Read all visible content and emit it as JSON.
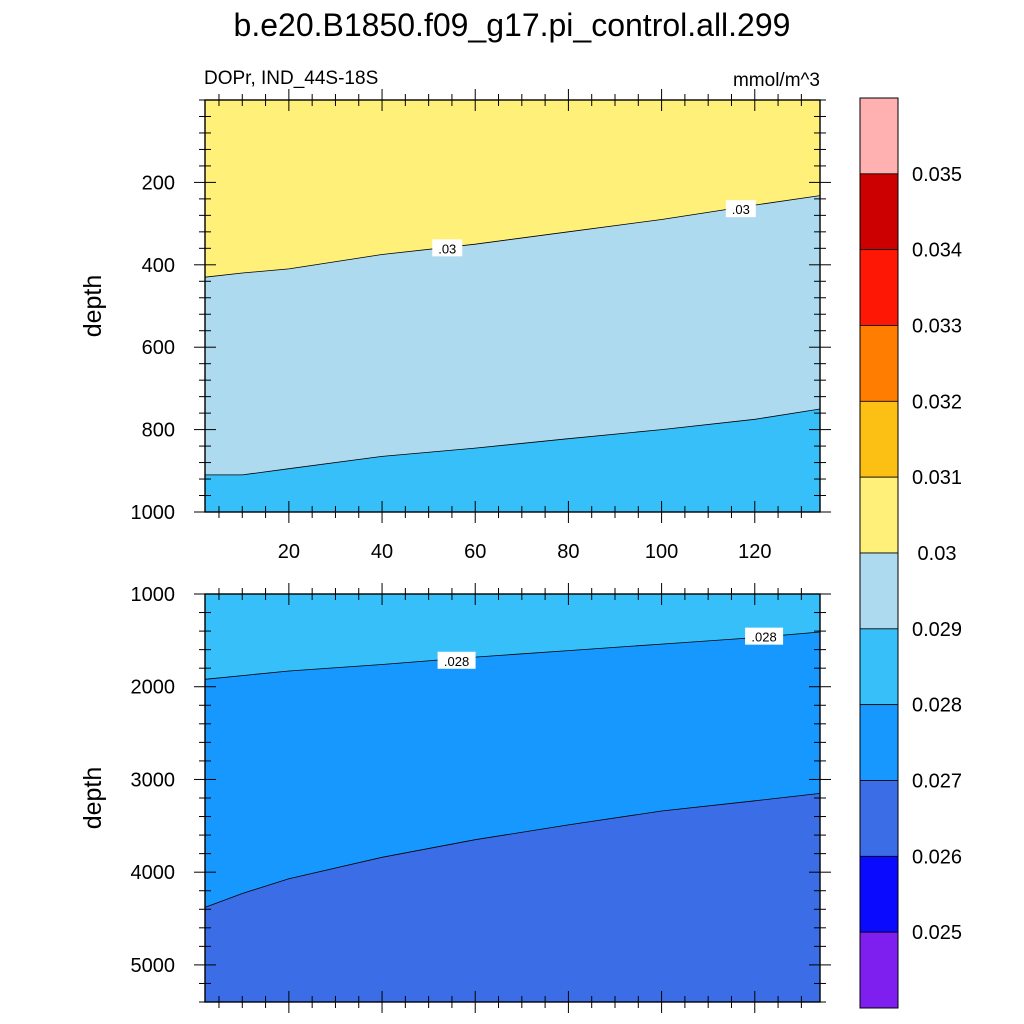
{
  "title": "b.e20.B1850.f09_g17.pi_control.all.299",
  "chart_data": {
    "type": "filled-contour",
    "title": "b.e20.B1850.f09_g17.pi_control.all.299",
    "left_subtitle": "DOPr, IND_44S-18S",
    "right_subtitle": "mmol/m^3",
    "x_range": [
      2,
      134
    ],
    "x_ticks": [
      "20",
      "40",
      "60",
      "80",
      "100",
      "120"
    ],
    "x_tick_values": [
      20,
      40,
      60,
      80,
      100,
      120
    ],
    "colorbar": {
      "levels": [
        "0.025",
        "0.026",
        "0.027",
        "0.028",
        "0.029",
        "0.03",
        "0.031",
        "0.032",
        "0.033",
        "0.034",
        "0.035"
      ],
      "colors": [
        "#7f1fef",
        "#0a0afe",
        "#3b6ee6",
        "#1798ff",
        "#36bff8",
        "#aedaf0",
        "#fff07a",
        "#fcbf14",
        "#ff7d00",
        "#fe1704",
        "#cc0000",
        "#ffb0b0"
      ]
    },
    "panels": [
      {
        "name": "upper",
        "ylabel": "depth",
        "y_range": [
          0,
          1000
        ],
        "y_ticks": [
          "200",
          "400",
          "600",
          "800",
          "1000"
        ],
        "y_tick_values": [
          200,
          400,
          600,
          800,
          1000
        ],
        "background_color": "#36bff8",
        "bands": [
          {
            "color": "#aedaf0",
            "boundary": [
              [
                2,
                910
              ],
              [
                10,
                910
              ],
              [
                20,
                895
              ],
              [
                40,
                865
              ],
              [
                60,
                845
              ],
              [
                80,
                822
              ],
              [
                100,
                800
              ],
              [
                120,
                775
              ],
              [
                134,
                750
              ]
            ]
          },
          {
            "color": "#fff07a",
            "boundary": [
              [
                2,
                430
              ],
              [
                10,
                420
              ],
              [
                20,
                410
              ],
              [
                40,
                375
              ],
              [
                60,
                350
              ],
              [
                80,
                320
              ],
              [
                100,
                290
              ],
              [
                120,
                255
              ],
              [
                134,
                232
              ]
            ]
          }
        ],
        "contour_labels": [
          {
            "text": ".03",
            "x": 54,
            "y": 360
          },
          {
            "text": ".03",
            "x": 117,
            "y": 265
          }
        ]
      },
      {
        "name": "lower",
        "ylabel": "depth",
        "y_range": [
          1000,
          5400
        ],
        "y_ticks": [
          "1000",
          "2000",
          "3000",
          "4000",
          "5000"
        ],
        "y_tick_values": [
          1000,
          2000,
          3000,
          4000,
          5000
        ],
        "background_color": "#3b6ee6",
        "bands": [
          {
            "color": "#1798ff",
            "boundary": [
              [
                2,
                4380
              ],
              [
                10,
                4230
              ],
              [
                20,
                4070
              ],
              [
                40,
                3840
              ],
              [
                60,
                3650
              ],
              [
                80,
                3490
              ],
              [
                100,
                3340
              ],
              [
                120,
                3230
              ],
              [
                134,
                3150
              ]
            ]
          },
          {
            "color": "#36bff8",
            "boundary": [
              [
                2,
                1920
              ],
              [
                20,
                1830
              ],
              [
                40,
                1760
              ],
              [
                60,
                1680
              ],
              [
                80,
                1610
              ],
              [
                100,
                1540
              ],
              [
                120,
                1470
              ],
              [
                134,
                1410
              ]
            ]
          }
        ],
        "contour_labels": [
          {
            "text": ".028",
            "x": 56,
            "y": 1720
          },
          {
            "text": ".028",
            "x": 122,
            "y": 1460
          }
        ]
      }
    ]
  }
}
